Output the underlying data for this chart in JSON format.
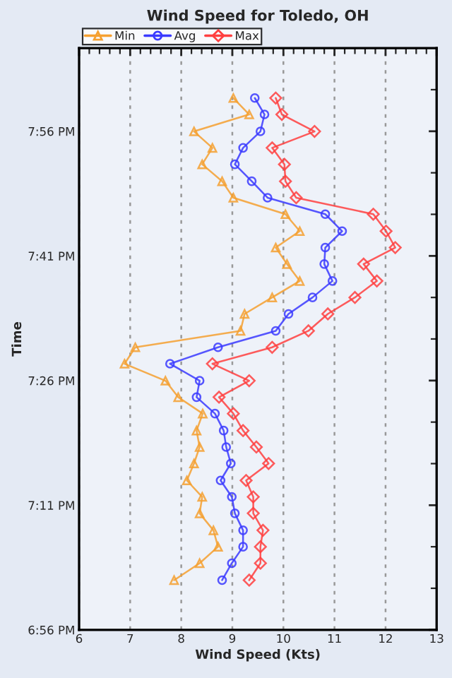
{
  "chart_data": {
    "type": "line",
    "title": "Wind Speed for Toledo, OH",
    "xlabel": "Wind Speed (Kts)",
    "ylabel": "Time",
    "series": [
      {
        "name": "Min",
        "color": "#f5a030",
        "marker": "triangle",
        "x": [
          9.02,
          9.33,
          8.25,
          8.61,
          8.41,
          8.8,
          9.02,
          10.04,
          10.32,
          9.85,
          10.07,
          10.32,
          9.78,
          9.24,
          9.16,
          7.1,
          6.89,
          7.69,
          7.94,
          8.42,
          8.3,
          8.36,
          8.25,
          8.11,
          8.41,
          8.36,
          8.63,
          8.72,
          8.36,
          7.86
        ],
        "values": [
          20.0,
          19.967,
          19.933,
          19.9,
          19.867,
          19.833,
          19.8,
          19.767,
          19.733,
          19.7,
          19.667,
          19.633,
          19.6,
          19.567,
          19.533,
          19.5,
          19.467,
          19.433,
          19.4,
          19.367,
          19.333,
          19.3,
          19.267,
          19.233,
          19.2,
          19.167,
          19.133,
          19.1,
          19.067,
          19.033
        ]
      },
      {
        "name": "Avg",
        "color": "#3a3aff",
        "marker": "circle",
        "x": [
          9.44,
          9.63,
          9.55,
          9.21,
          9.05,
          9.38,
          9.69,
          10.82,
          11.15,
          10.82,
          10.8,
          10.96,
          10.57,
          10.1,
          9.85,
          8.72,
          7.78,
          8.36,
          8.3,
          8.66,
          8.83,
          8.88,
          8.97,
          8.77,
          8.99,
          9.05,
          9.21,
          9.21,
          8.99,
          8.8
        ],
        "values": [
          20.0,
          19.967,
          19.933,
          19.9,
          19.867,
          19.833,
          19.8,
          19.767,
          19.733,
          19.7,
          19.667,
          19.633,
          19.6,
          19.567,
          19.533,
          19.5,
          19.467,
          19.433,
          19.4,
          19.367,
          19.333,
          19.3,
          19.267,
          19.233,
          19.2,
          19.167,
          19.133,
          19.1,
          19.067,
          19.033
        ]
      },
      {
        "name": "Max",
        "color": "#ff4040",
        "marker": "diamond",
        "x": [
          9.85,
          9.97,
          10.61,
          9.78,
          10.02,
          10.04,
          10.25,
          11.76,
          12.01,
          12.19,
          11.57,
          11.83,
          11.4,
          10.87,
          10.49,
          9.78,
          8.61,
          9.33,
          8.74,
          9.02,
          9.21,
          9.47,
          9.71,
          9.27,
          9.41,
          9.41,
          9.6,
          9.55,
          9.55,
          9.33
        ],
        "values": [
          20.0,
          19.967,
          19.933,
          19.9,
          19.867,
          19.833,
          19.8,
          19.767,
          19.733,
          19.7,
          19.667,
          19.633,
          19.6,
          19.567,
          19.533,
          19.5,
          19.467,
          19.433,
          19.4,
          19.367,
          19.333,
          19.3,
          19.267,
          19.233,
          19.2,
          19.167,
          19.133,
          19.1,
          19.067,
          19.033
        ]
      }
    ],
    "xlim": [
      6,
      13
    ],
    "xticks": [
      6,
      {
        "value": 6.2,
        "label": null
      },
      {
        "value": 6.4,
        "label": null
      },
      {
        "value": 6.6,
        "label": null
      },
      {
        "value": 6.8,
        "label": null
      },
      7,
      {
        "value": 7.2,
        "label": null
      },
      {
        "value": 7.4,
        "label": null
      },
      {
        "value": 7.6,
        "label": null
      },
      {
        "value": 7.8,
        "label": null
      },
      8,
      {
        "value": 8.2,
        "label": null
      },
      {
        "value": 8.4,
        "label": null
      },
      {
        "value": 8.6,
        "label": null
      },
      {
        "value": 8.8,
        "label": null
      },
      9,
      {
        "value": 9.2,
        "label": null
      },
      {
        "value": 9.4,
        "label": null
      },
      {
        "value": 9.6,
        "label": null
      },
      {
        "value": 9.8,
        "label": null
      },
      10,
      {
        "value": 10.2,
        "label": null
      },
      {
        "value": 10.4,
        "label": null
      },
      {
        "value": 10.6,
        "label": null
      },
      {
        "value": 10.8,
        "label": null
      },
      11,
      {
        "value": 11.2,
        "label": null
      },
      {
        "value": 11.4,
        "label": null
      },
      {
        "value": 11.6,
        "label": null
      },
      {
        "value": 11.8,
        "label": null
      },
      12,
      {
        "value": 12.2,
        "label": null
      },
      {
        "value": 12.4,
        "label": null
      },
      {
        "value": 12.6,
        "label": null
      },
      {
        "value": 12.8,
        "label": null
      },
      13
    ],
    "ylim": [
      18.9333,
      20.1
    ],
    "yticks": [
      {
        "value": 18.9333,
        "label": "6:56 PM"
      },
      {
        "value": 19.0167,
        "label": null
      },
      {
        "value": 19.1,
        "label": null
      },
      {
        "value": 19.1833,
        "label": "7:11 PM"
      },
      {
        "value": 19.2667,
        "label": null
      },
      {
        "value": 19.35,
        "label": null
      },
      {
        "value": 19.4333,
        "label": "7:26 PM"
      },
      {
        "value": 19.5167,
        "label": null
      },
      {
        "value": 19.6,
        "label": null
      },
      {
        "value": 19.6833,
        "label": "7:41 PM"
      },
      {
        "value": 19.7667,
        "label": null
      },
      {
        "value": 19.85,
        "label": null
      },
      {
        "value": 19.9333,
        "label": "7:56 PM"
      },
      {
        "value": 20.0167,
        "label": null
      }
    ],
    "grid": "x",
    "legend": "top left",
    "line_style": "solid"
  }
}
